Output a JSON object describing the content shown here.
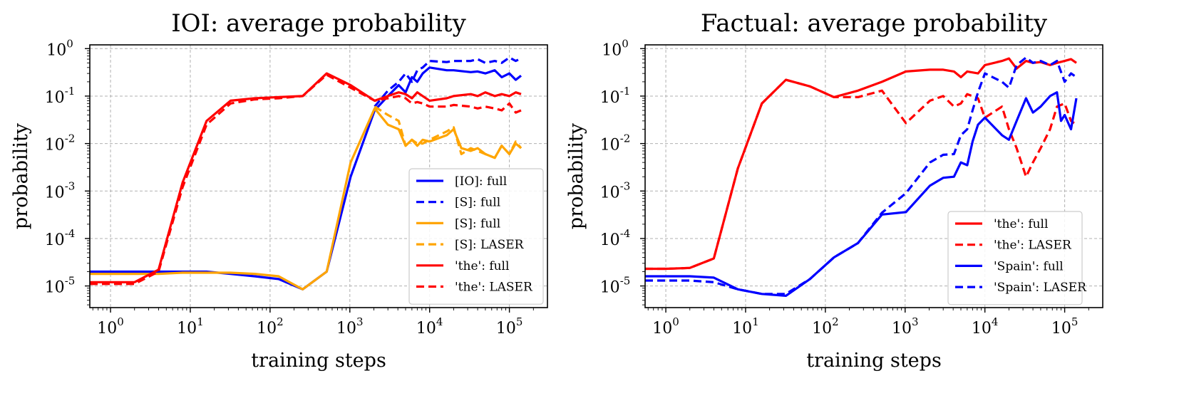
{
  "chart_data": [
    {
      "type": "line",
      "title": "IOI: average probability",
      "xlabel": "training steps",
      "ylabel": "probability",
      "xscale": "log",
      "yscale": "log",
      "xlim": [
        0.55,
        300000
      ],
      "ylim": [
        3.5e-06,
        1.2
      ],
      "xticks": [
        1,
        10,
        100,
        1000,
        10000,
        100000
      ],
      "yticks": [
        1e-05,
        0.0001,
        0.001,
        0.01,
        0.1,
        1
      ],
      "grid": true,
      "legend_position": "lower-right",
      "series": [
        {
          "name": "[IO]: full",
          "color": "#0000ff",
          "dash": "solid",
          "x": [
            0.55,
            1,
            2,
            4,
            8,
            16,
            32,
            64,
            128,
            256,
            512,
            1024,
            2048,
            3000,
            4096,
            5000,
            6000,
            7000,
            8192,
            10000,
            16384,
            20000,
            32768,
            40000,
            50000,
            65536,
            80000,
            100000,
            120000,
            140000
          ],
          "y": [
            2e-05,
            2e-05,
            2e-05,
            2e-05,
            2e-05,
            2e-05,
            1.8e-05,
            1.6e-05,
            1.4e-05,
            8.5e-06,
            2e-05,
            0.002,
            0.05,
            0.1,
            0.17,
            0.12,
            0.25,
            0.2,
            0.3,
            0.4,
            0.35,
            0.35,
            0.32,
            0.33,
            0.3,
            0.35,
            0.25,
            0.3,
            0.22,
            0.27
          ]
        },
        {
          "name": "[S]: full",
          "color": "#0000ff",
          "dash": "dashed",
          "x": [
            2048,
            3000,
            4096,
            5000,
            6000,
            7000,
            8192,
            10000,
            16384,
            20000,
            32768,
            40000,
            50000,
            65536,
            80000,
            100000,
            120000,
            140000
          ],
          "y": [
            0.06,
            0.13,
            0.2,
            0.3,
            0.2,
            0.35,
            0.4,
            0.55,
            0.52,
            0.55,
            0.55,
            0.6,
            0.5,
            0.55,
            0.5,
            0.65,
            0.55,
            0.62
          ]
        },
        {
          "name": "[S]: full",
          "color": "#ffa500",
          "dash": "solid",
          "x": [
            0.55,
            1,
            2,
            4,
            8,
            16,
            32,
            64,
            128,
            256,
            512,
            1024,
            2048,
            3000,
            4096,
            5000,
            6000,
            7000,
            8192,
            10000,
            16384,
            20000,
            25000,
            32768,
            40000,
            50000,
            65536,
            80000,
            100000,
            120000,
            140000
          ],
          "y": [
            1.8e-05,
            1.8e-05,
            1.8e-05,
            1.8e-05,
            1.9e-05,
            1.9e-05,
            1.9e-05,
            1.8e-05,
            1.6e-05,
            8.5e-06,
            2e-05,
            0.004,
            0.055,
            0.025,
            0.02,
            0.009,
            0.012,
            0.009,
            0.012,
            0.011,
            0.015,
            0.02,
            0.008,
            0.007,
            0.008,
            0.006,
            0.005,
            0.009,
            0.006,
            0.01,
            0.008
          ]
        },
        {
          "name": "[S]: LASER",
          "color": "#ffa500",
          "dash": "dashed",
          "x": [
            2048,
            3000,
            4096,
            5000,
            6000,
            7000,
            8192,
            10000,
            16384,
            20000,
            25000,
            32768,
            40000,
            50000,
            65536,
            80000,
            100000,
            120000,
            140000
          ],
          "y": [
            0.06,
            0.04,
            0.03,
            0.009,
            0.012,
            0.01,
            0.01,
            0.012,
            0.018,
            0.022,
            0.006,
            0.008,
            0.007,
            0.006,
            0.005,
            0.009,
            0.006,
            0.011,
            0.008
          ]
        },
        {
          "name": "'the': full",
          "color": "#ff0000",
          "dash": "solid",
          "x": [
            0.55,
            1,
            2,
            4,
            8,
            16,
            32,
            64,
            128,
            256,
            512,
            1024,
            2048,
            3000,
            4096,
            5000,
            6000,
            7000,
            8192,
            10000,
            16384,
            20000,
            32768,
            40000,
            50000,
            65536,
            80000,
            100000,
            120000,
            140000
          ],
          "y": [
            1.2e-05,
            1.2e-05,
            1.2e-05,
            2.2e-05,
            0.0015,
            0.03,
            0.08,
            0.09,
            0.095,
            0.1,
            0.3,
            0.17,
            0.08,
            0.1,
            0.12,
            0.11,
            0.09,
            0.12,
            0.1,
            0.08,
            0.09,
            0.1,
            0.11,
            0.1,
            0.12,
            0.1,
            0.11,
            0.1,
            0.12,
            0.11
          ]
        },
        {
          "name": "'the': LASER",
          "color": "#ff0000",
          "dash": "dashed",
          "x": [
            0.55,
            1,
            2,
            4,
            8,
            16,
            32,
            64,
            128,
            256,
            512,
            1024,
            2048,
            3000,
            4096,
            5000,
            6000,
            7000,
            8192,
            10000,
            16384,
            20000,
            32768,
            40000,
            50000,
            65536,
            80000,
            100000,
            120000,
            140000
          ],
          "y": [
            1.1e-05,
            1.1e-05,
            1.1e-05,
            2e-05,
            0.0012,
            0.025,
            0.07,
            0.085,
            0.09,
            0.1,
            0.28,
            0.15,
            0.08,
            0.09,
            0.1,
            0.09,
            0.07,
            0.075,
            0.07,
            0.06,
            0.06,
            0.065,
            0.06,
            0.055,
            0.06,
            0.055,
            0.05,
            0.07,
            0.045,
            0.05
          ]
        }
      ]
    },
    {
      "type": "line",
      "title": "Factual: average probability",
      "xlabel": "training steps",
      "ylabel": "probability",
      "xscale": "log",
      "yscale": "log",
      "xlim": [
        0.55,
        300000
      ],
      "ylim": [
        3.5e-06,
        1.2
      ],
      "xticks": [
        1,
        10,
        100,
        1000,
        10000,
        100000
      ],
      "yticks": [
        1e-05,
        0.0001,
        0.001,
        0.01,
        0.1,
        1
      ],
      "grid": true,
      "legend_position": "lower-right",
      "series": [
        {
          "name": "'the': full",
          "color": "#ff0000",
          "dash": "solid",
          "x": [
            0.55,
            1,
            2,
            4,
            8,
            16,
            32,
            64,
            128,
            256,
            512,
            1024,
            2048,
            3000,
            4096,
            5000,
            6000,
            8192,
            10000,
            16384,
            20000,
            25000,
            32768,
            40000,
            50000,
            65536,
            80000,
            100000,
            120000,
            140000
          ],
          "y": [
            2.3e-05,
            2.3e-05,
            2.4e-05,
            3.8e-05,
            0.003,
            0.07,
            0.22,
            0.16,
            0.095,
            0.13,
            0.2,
            0.33,
            0.36,
            0.36,
            0.33,
            0.25,
            0.33,
            0.3,
            0.45,
            0.55,
            0.62,
            0.38,
            0.55,
            0.5,
            0.52,
            0.45,
            0.5,
            0.55,
            0.6,
            0.5
          ]
        },
        {
          "name": "'the': LASER",
          "color": "#ff0000",
          "dash": "dashed",
          "x": [
            0.55,
            1,
            2,
            4,
            8,
            16,
            32,
            64,
            128,
            256,
            512,
            1024,
            2048,
            3000,
            4096,
            5000,
            6000,
            8192,
            10000,
            16384,
            20000,
            25000,
            32768,
            40000,
            50000,
            65536,
            80000,
            100000,
            120000,
            140000
          ],
          "y": [
            2.3e-05,
            2.3e-05,
            2.4e-05,
            3.8e-05,
            0.003,
            0.07,
            0.22,
            0.16,
            0.095,
            0.095,
            0.13,
            0.027,
            0.08,
            0.1,
            0.06,
            0.07,
            0.11,
            0.09,
            0.035,
            0.06,
            0.02,
            0.008,
            0.002,
            0.004,
            0.008,
            0.02,
            0.06,
            0.07,
            0.03,
            0.025
          ]
        },
        {
          "name": "'Spain': full",
          "color": "#0000ff",
          "dash": "solid",
          "x": [
            0.55,
            1,
            2,
            4,
            8,
            16,
            32,
            64,
            128,
            256,
            512,
            1024,
            2048,
            3000,
            4096,
            5000,
            6000,
            7000,
            8192,
            10000,
            16384,
            20000,
            25000,
            32768,
            40000,
            50000,
            65536,
            80000,
            90000,
            100000,
            120000,
            140000
          ],
          "y": [
            1.6e-05,
            1.6e-05,
            1.6e-05,
            1.5e-05,
            8.5e-06,
            6.8e-06,
            6.2e-06,
            1.4e-05,
            4e-05,
            8e-05,
            0.00032,
            0.00036,
            0.0013,
            0.0019,
            0.002,
            0.004,
            0.0035,
            0.011,
            0.025,
            0.035,
            0.015,
            0.012,
            0.03,
            0.09,
            0.045,
            0.06,
            0.1,
            0.12,
            0.03,
            0.04,
            0.02,
            0.09
          ]
        },
        {
          "name": "'Spain': LASER",
          "color": "#0000ff",
          "dash": "dashed",
          "x": [
            0.55,
            1,
            2,
            4,
            8,
            16,
            32,
            64,
            128,
            256,
            512,
            1024,
            2048,
            3000,
            4096,
            5000,
            6000,
            7000,
            8192,
            10000,
            16384,
            20000,
            25000,
            32768,
            40000,
            50000,
            65536,
            80000,
            100000,
            120000,
            140000
          ],
          "y": [
            1.3e-05,
            1.3e-05,
            1.3e-05,
            1.2e-05,
            8.5e-06,
            6.8e-06,
            6.8e-06,
            1.4e-05,
            4e-05,
            8e-05,
            0.00035,
            0.0009,
            0.004,
            0.0058,
            0.006,
            0.015,
            0.02,
            0.05,
            0.12,
            0.3,
            0.2,
            0.15,
            0.45,
            0.65,
            0.5,
            0.55,
            0.45,
            0.55,
            0.2,
            0.3,
            0.25
          ]
        }
      ]
    }
  ]
}
